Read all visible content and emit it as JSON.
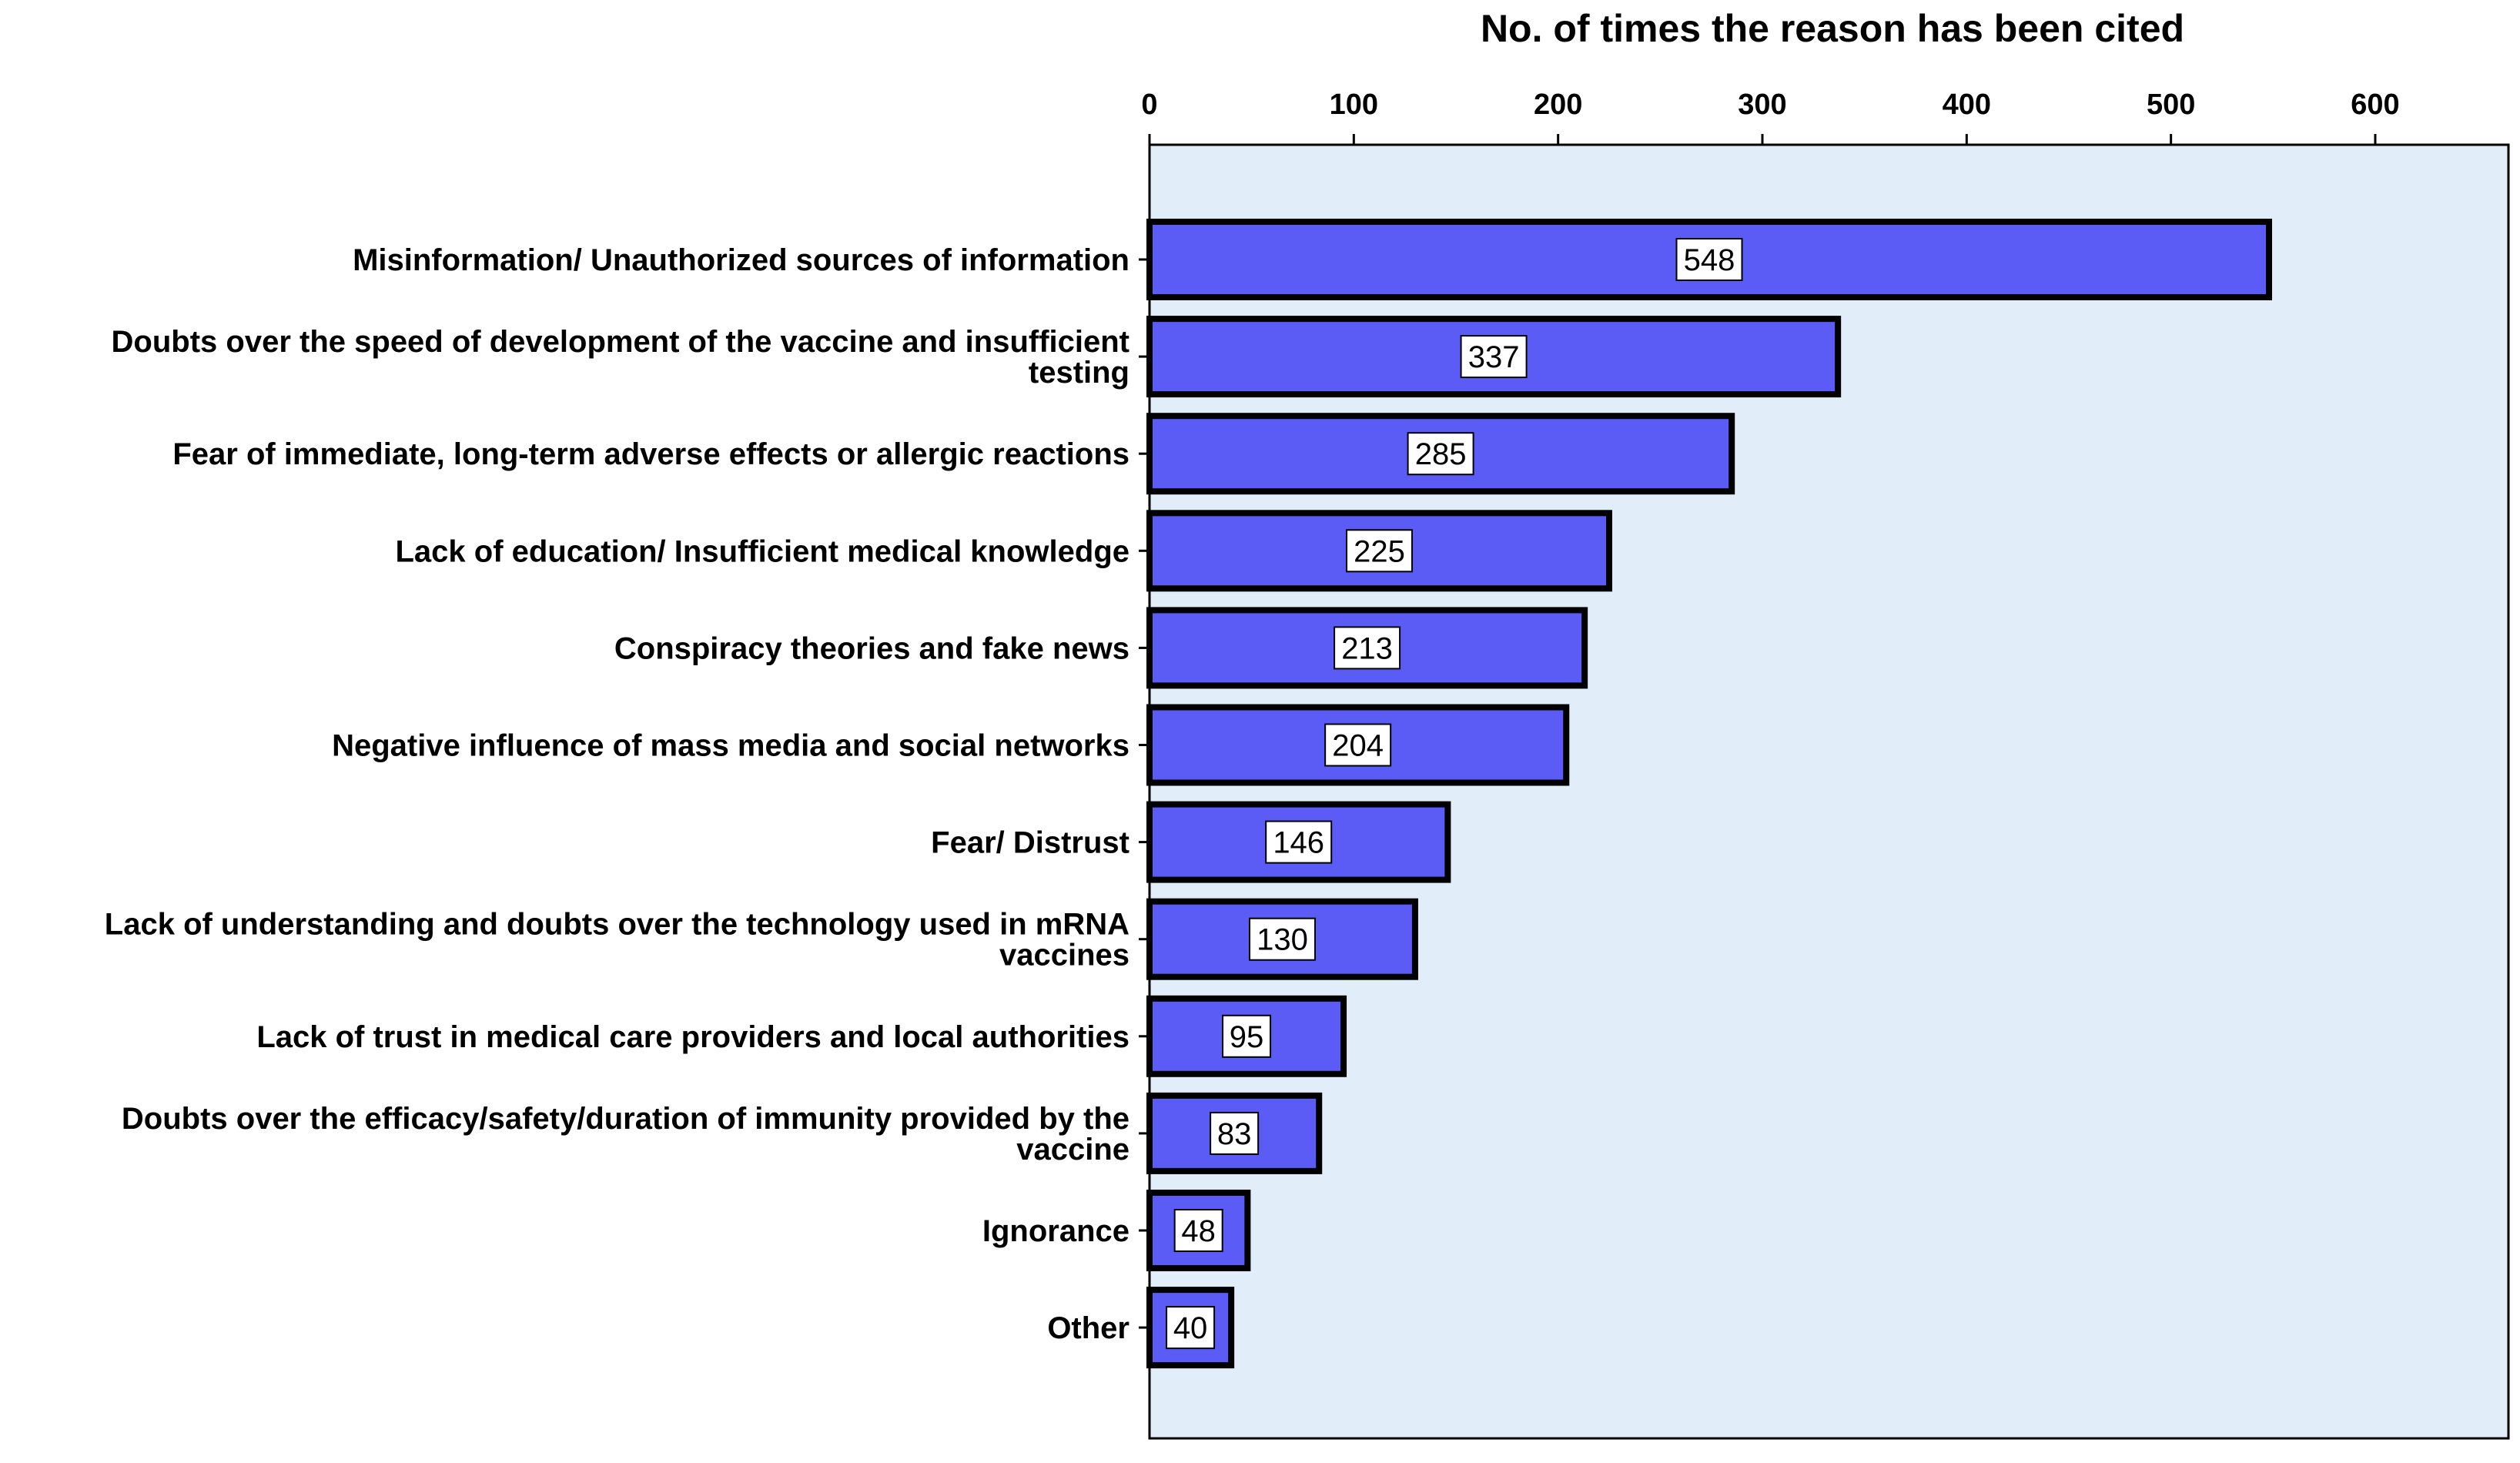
{
  "chart_data": {
    "type": "bar",
    "orientation": "horizontal",
    "title": "No. of times the reason has been cited",
    "xlabel": "No. of times the reason has been cited",
    "ylabel": "",
    "xlim": [
      0,
      670
    ],
    "ticks": [
      0,
      100,
      200,
      300,
      400,
      500,
      600
    ],
    "x_axis_position": "top",
    "grid": false,
    "categories": [
      [
        "Misinformation/ Unauthorized sources of information"
      ],
      [
        "Doubts over the speed of development of the vaccine and insufficient",
        "testing"
      ],
      [
        "Fear of immediate, long-term adverse effects or allergic reactions"
      ],
      [
        "Lack of education/ Insufficient medical knowledge"
      ],
      [
        "Conspiracy theories and fake news"
      ],
      [
        "Negative influence of mass media and social networks"
      ],
      [
        "Fear/ Distrust"
      ],
      [
        "Lack of understanding and doubts over the technology used in mRNA",
        "vaccines"
      ],
      [
        "Lack of trust in medical care providers and local authorities"
      ],
      [
        "Doubts over the efficacy/safety/duration of immunity provided by the",
        "vaccine"
      ],
      [
        "Ignorance"
      ],
      [
        "Other"
      ]
    ],
    "values": [
      548,
      337,
      285,
      225,
      213,
      204,
      146,
      130,
      95,
      83,
      48,
      40
    ],
    "data_labels": [
      "548",
      "337",
      "285",
      "225",
      "213",
      "204",
      "146",
      "130",
      "95",
      "83",
      "48",
      "40"
    ],
    "colors": {
      "bar_fill": "#5B5BF5",
      "bar_stroke": "#000000",
      "plot_background": "#E1EDF8",
      "label_box": "#FFFFFF"
    }
  }
}
